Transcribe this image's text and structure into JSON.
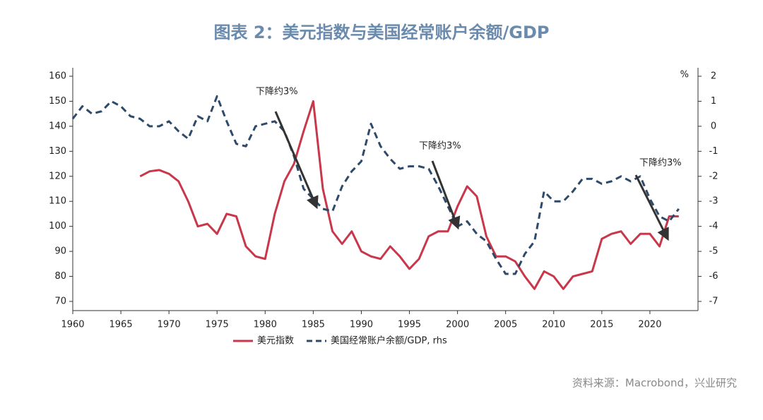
{
  "chart_data": {
    "type": "line",
    "title": "图表 2：美元指数与美国经常账户余额/GDP",
    "source": "资料来源：Macrobond，兴业研究",
    "y2_unit": "%",
    "annotations": [
      "下降约3%",
      "下降约3%",
      "下降约3%"
    ],
    "x": [
      1960,
      1961,
      1962,
      1963,
      1964,
      1965,
      1966,
      1967,
      1968,
      1969,
      1970,
      1971,
      1972,
      1973,
      1974,
      1975,
      1976,
      1977,
      1978,
      1979,
      1980,
      1981,
      1982,
      1983,
      1984,
      1985,
      1986,
      1987,
      1988,
      1989,
      1990,
      1991,
      1992,
      1993,
      1994,
      1995,
      1996,
      1997,
      1998,
      1999,
      2000,
      2001,
      2002,
      2003,
      2004,
      2005,
      2006,
      2007,
      2008,
      2009,
      2010,
      2011,
      2012,
      2013,
      2014,
      2015,
      2016,
      2017,
      2018,
      2019,
      2020,
      2021,
      2022,
      2023
    ],
    "series": [
      {
        "name": "美元指数",
        "color": "#c8374a",
        "axis": "y",
        "dash": false,
        "values": [
          null,
          null,
          null,
          null,
          null,
          null,
          null,
          120,
          122,
          122.5,
          121,
          118,
          110,
          100,
          101,
          97,
          105,
          104,
          92,
          88,
          87,
          105,
          118,
          125,
          138,
          150,
          115,
          98,
          93,
          98,
          90,
          88,
          87,
          92,
          88,
          83,
          87,
          96,
          98,
          98,
          108,
          116,
          112,
          96,
          88,
          88,
          86,
          80,
          75,
          82,
          80,
          75,
          80,
          81,
          82,
          95,
          97,
          98,
          93,
          97,
          97,
          92,
          104,
          104
        ]
      },
      {
        "name": "美国经常账户余额/GDP, rhs",
        "color": "#2e4a6b",
        "axis": "y2",
        "dash": true,
        "values": [
          0.3,
          0.8,
          0.5,
          0.6,
          1.0,
          0.8,
          0.4,
          0.3,
          0.0,
          0.0,
          0.2,
          -0.2,
          -0.5,
          0.4,
          0.2,
          1.2,
          0.2,
          -0.7,
          -0.8,
          0.0,
          0.1,
          0.2,
          -0.2,
          -1.2,
          -2.5,
          -2.9,
          -3.3,
          -3.4,
          -2.4,
          -1.8,
          -1.4,
          0.1,
          -0.8,
          -1.3,
          -1.7,
          -1.6,
          -1.6,
          -1.7,
          -2.4,
          -3.2,
          -4.0,
          -3.8,
          -4.3,
          -4.6,
          -5.3,
          -5.9,
          -5.9,
          -5.1,
          -4.6,
          -2.6,
          -3.0,
          -3.0,
          -2.6,
          -2.1,
          -2.1,
          -2.3,
          -2.2,
          -2.0,
          -2.2,
          -2.0,
          -2.9,
          -3.6,
          -3.8,
          -3.3
        ]
      }
    ],
    "xlim": [
      1960,
      2025
    ],
    "xticks": [
      1960,
      1965,
      1970,
      1975,
      1980,
      1985,
      1990,
      1995,
      2000,
      2005,
      2010,
      2015,
      2020
    ],
    "ylim": [
      70,
      160
    ],
    "yticks": [
      70,
      80,
      90,
      100,
      110,
      120,
      130,
      140,
      150,
      160
    ],
    "y2lim": [
      -7,
      2
    ],
    "y2ticks": [
      -7,
      -6,
      -5,
      -4,
      -3,
      -2,
      -1,
      0,
      1,
      2
    ],
    "grid": false,
    "legend": "bottom"
  }
}
